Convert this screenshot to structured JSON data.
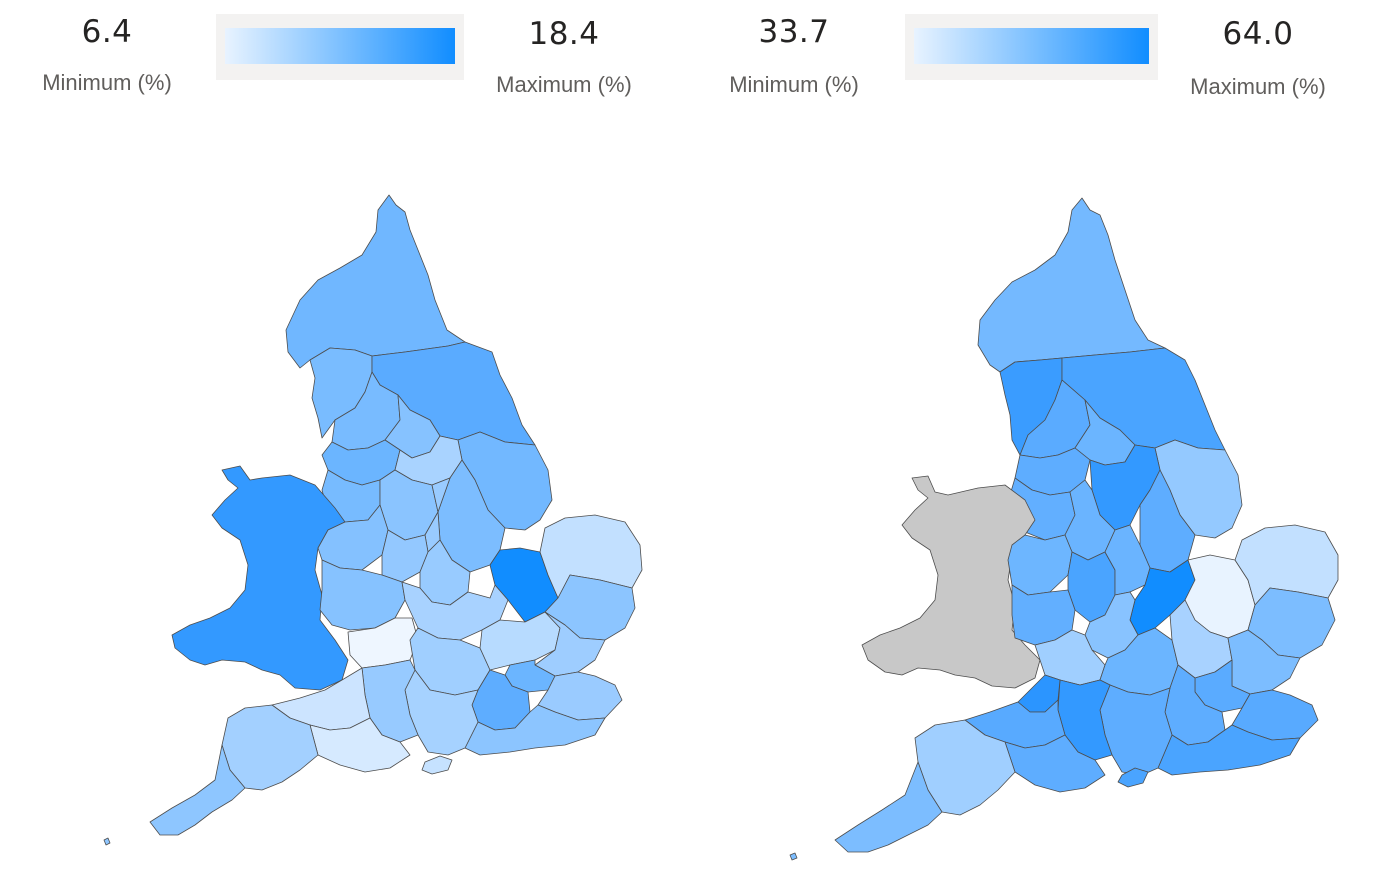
{
  "panels": [
    {
      "minimum": {
        "value": "6.4",
        "label": "Minimum (%)"
      },
      "maximum": {
        "value": "18.4",
        "label": "Maximum (%)"
      },
      "gradient": {
        "start": "#e8f3ff",
        "end": "#118dff"
      }
    },
    {
      "minimum": {
        "value": "33.7",
        "label": "Minimum (%)"
      },
      "maximum": {
        "value": "64.0",
        "label": "Maximum (%)"
      },
      "gradient": {
        "start": "#e8f3ff",
        "end": "#118dff"
      }
    }
  ],
  "colors": {
    "no_data": "#c8c8c8",
    "region_border": "#4d4d4d",
    "background": "#ffffff"
  }
}
